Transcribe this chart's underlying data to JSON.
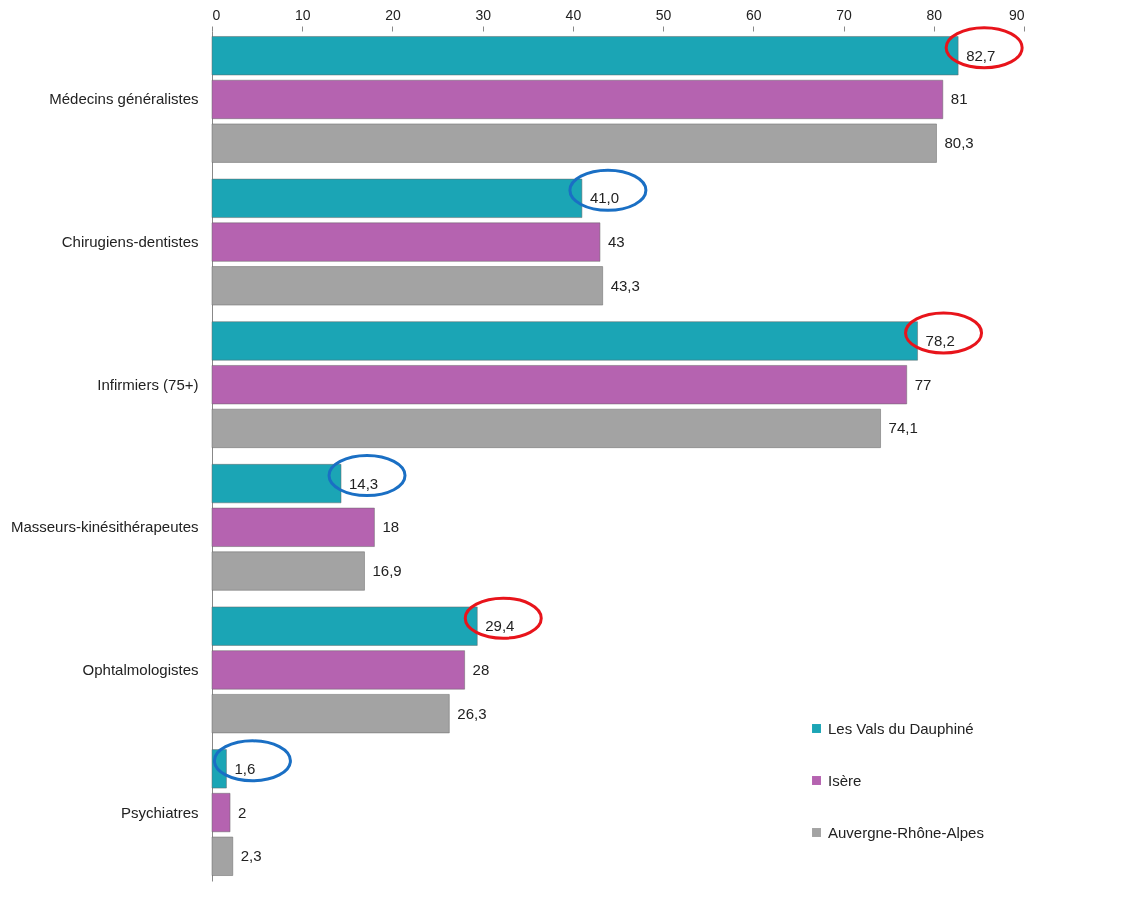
{
  "chart_data": {
    "type": "bar",
    "orientation": "horizontal",
    "categories": [
      "Médecins généralistes",
      "Chirugiens-dentistes",
      "Infirmiers (75+)",
      "Masseurs-kinésithérapeutes",
      "Ophtalmologistes",
      "Psychiatres"
    ],
    "series": [
      {
        "name": "Les Vals du Dauphiné",
        "color": "#1ba5b5",
        "values": [
          82.7,
          41.0,
          78.2,
          14.3,
          29.4,
          1.6
        ],
        "value_labels": [
          "82,7",
          "41,0",
          "78,2",
          "14,3",
          "29,4",
          "1,6"
        ]
      },
      {
        "name": "Isère",
        "color": "#b563b0",
        "values": [
          81,
          43,
          77,
          18,
          28,
          2
        ],
        "value_labels": [
          "81",
          "43",
          "77",
          "18",
          "28",
          "2"
        ]
      },
      {
        "name": "Auvergne-Rhône-Alpes",
        "color": "#a3a3a3",
        "values": [
          80.3,
          43.3,
          74.1,
          16.9,
          26.3,
          2.3
        ],
        "value_labels": [
          "80,3",
          "43,3",
          "74,1",
          "16,9",
          "26,3",
          "2,3"
        ]
      }
    ],
    "xlim": [
      0,
      90
    ],
    "xticks": [
      0,
      10,
      20,
      30,
      40,
      50,
      60,
      70,
      80,
      90
    ],
    "grid": false,
    "legend": "bottom right"
  }
}
